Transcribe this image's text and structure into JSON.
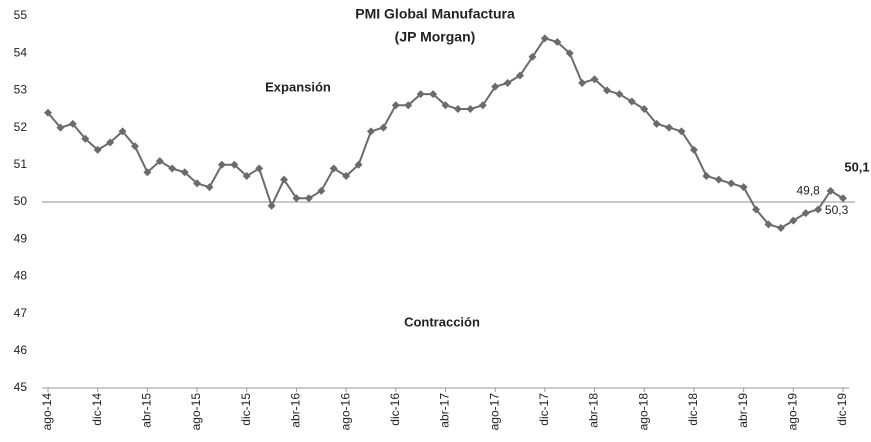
{
  "chart_data": {
    "type": "line",
    "title": "PMI Global  Manufactura",
    "subtitle": "(JP Morgan)",
    "annotations": [
      "Expansión",
      "Contracción"
    ],
    "categories": [
      "ago-14",
      null,
      null,
      null,
      "dic-14",
      null,
      null,
      null,
      "abr-15",
      null,
      null,
      null,
      "ago-15",
      null,
      null,
      null,
      "dic-15",
      null,
      null,
      null,
      "abr-16",
      null,
      null,
      null,
      "ago-16",
      null,
      null,
      null,
      "dic-16",
      null,
      null,
      null,
      "abr-17",
      null,
      null,
      null,
      "ago-17",
      null,
      null,
      null,
      "dic-17",
      null,
      null,
      null,
      "abr-18",
      null,
      null,
      null,
      "ago-18",
      null,
      null,
      null,
      "dic-18",
      null,
      null,
      null,
      "abr-19",
      null,
      null,
      null,
      "ago-19",
      null,
      null,
      null,
      "dic-19"
    ],
    "series": [
      {
        "name": "PMI",
        "color": "#6b6b6b",
        "values": [
          52.4,
          52.0,
          52.1,
          51.7,
          51.4,
          51.6,
          51.9,
          51.5,
          50.8,
          51.1,
          50.9,
          50.8,
          50.5,
          50.4,
          51.0,
          51.0,
          50.7,
          50.9,
          49.9,
          50.6,
          50.1,
          50.1,
          50.3,
          50.9,
          50.7,
          51.0,
          51.9,
          52.0,
          52.6,
          52.6,
          52.9,
          52.9,
          52.6,
          52.5,
          52.5,
          52.6,
          53.1,
          53.2,
          53.4,
          53.9,
          54.4,
          54.3,
          54.0,
          53.2,
          53.3,
          53.0,
          52.9,
          52.7,
          52.5,
          52.1,
          52.0,
          51.9,
          51.4,
          50.7,
          50.6,
          50.5,
          50.4,
          49.8,
          49.4,
          49.3,
          49.5,
          49.7,
          49.8,
          50.3,
          50.1
        ],
        "value_labels": [
          null,
          null,
          null,
          null,
          null,
          null,
          null,
          null,
          null,
          null,
          null,
          null,
          null,
          null,
          null,
          null,
          null,
          null,
          null,
          null,
          null,
          null,
          null,
          null,
          null,
          null,
          null,
          null,
          null,
          null,
          null,
          null,
          null,
          null,
          null,
          null,
          null,
          null,
          null,
          null,
          null,
          null,
          null,
          null,
          null,
          null,
          null,
          null,
          null,
          null,
          null,
          null,
          null,
          null,
          null,
          null,
          null,
          null,
          null,
          null,
          null,
          null,
          "49,8",
          "50,3",
          "50,1"
        ]
      }
    ],
    "ylim": [
      45,
      55
    ],
    "yticks": [
      45,
      46,
      47,
      48,
      49,
      50,
      51,
      52,
      53,
      54,
      55
    ],
    "reference_line": 50,
    "grid": false
  }
}
